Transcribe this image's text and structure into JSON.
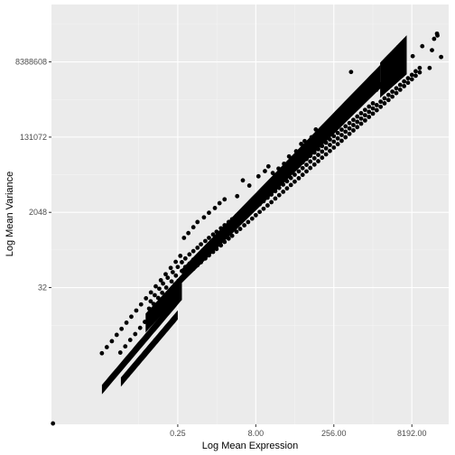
{
  "chart_data": {
    "type": "scatter",
    "title": "",
    "xlabel": "Log Mean Expression",
    "ylabel": "Log Mean Variance",
    "x_scale": "log2",
    "y_scale": "log2",
    "xlim": [
      0.000916,
      42000
    ],
    "ylim": [
      0.0167,
      200000000
    ],
    "xticks": [
      {
        "value": 0.25,
        "label": "0.25"
      },
      {
        "value": 8,
        "label": "8.00"
      },
      {
        "value": 256,
        "label": "256.00"
      },
      {
        "value": 8192,
        "label": "8192.00"
      }
    ],
    "yticks": [
      {
        "value": 32,
        "label": "32"
      },
      {
        "value": 2048,
        "label": "2048"
      },
      {
        "value": 131072,
        "label": "131072"
      },
      {
        "value": 8388608,
        "label": "8388608"
      }
    ],
    "grid": true,
    "legend": "none",
    "colors": {
      "panel_background": "#ebebeb",
      "grid_major": "#ffffff",
      "grid_minor": "#f5f5f5",
      "points": "#000000",
      "tick_label": "#4d4d4d",
      "axis_title": "#000000"
    },
    "series": [
      {
        "values_description": "",
        "points": [
          [
            0.00098,
            0.0175
          ],
          [
            0.0086,
            0.85
          ],
          [
            0.0107,
            1.19
          ],
          [
            0.0134,
            1.65
          ],
          [
            0.0166,
            2.34
          ],
          [
            0.0206,
            3.27
          ],
          [
            0.0256,
            4.6
          ],
          [
            0.0318,
            6.4
          ],
          [
            0.0396,
            9.0
          ],
          [
            0.049,
            12.6
          ],
          [
            0.061,
            17.7
          ],
          [
            0.076,
            24.5
          ],
          [
            0.094,
            34.3
          ],
          [
            0.118,
            48
          ],
          [
            0.146,
            67
          ],
          [
            0.183,
            95
          ],
          [
            0.228,
            133
          ],
          [
            0.28,
            185
          ],
          [
            0.0195,
            0.88
          ],
          [
            0.0243,
            1.24
          ],
          [
            0.0303,
            1.77
          ],
          [
            0.0378,
            2.45
          ],
          [
            0.047,
            3.45
          ],
          [
            0.058,
            4.8
          ],
          [
            0.073,
            6.8
          ],
          [
            0.091,
            9.6
          ],
          [
            0.114,
            13.5
          ],
          [
            0.142,
            19
          ],
          [
            0.177,
            27
          ],
          [
            0.22,
            38
          ],
          [
            0.075,
            15
          ],
          [
            0.09,
            21
          ],
          [
            0.11,
            30
          ],
          [
            0.13,
            40
          ],
          [
            0.16,
            55
          ],
          [
            0.2,
            75
          ],
          [
            0.25,
            100
          ],
          [
            0.07,
            10
          ],
          [
            0.085,
            13
          ],
          [
            0.105,
            18
          ],
          [
            0.125,
            24
          ],
          [
            0.15,
            32
          ],
          [
            0.19,
            45
          ],
          [
            0.23,
            62
          ],
          [
            0.1,
            11
          ],
          [
            0.12,
            14
          ],
          [
            0.14,
            18
          ],
          [
            0.17,
            25
          ],
          [
            0.21,
            34
          ],
          [
            0.26,
            47
          ],
          [
            0.3,
            52
          ],
          [
            0.3,
            80
          ],
          [
            0.3,
            130
          ],
          [
            0.35,
            60
          ],
          [
            0.35,
            100
          ],
          [
            0.35,
            160
          ],
          [
            0.42,
            75
          ],
          [
            0.42,
            120
          ],
          [
            0.42,
            200
          ],
          [
            0.5,
            90
          ],
          [
            0.5,
            150
          ],
          [
            0.5,
            240
          ],
          [
            0.6,
            110
          ],
          [
            0.6,
            180
          ],
          [
            0.6,
            290
          ],
          [
            0.7,
            130
          ],
          [
            0.7,
            210
          ],
          [
            0.7,
            350
          ],
          [
            0.85,
            160
          ],
          [
            0.85,
            260
          ],
          [
            0.85,
            420
          ],
          [
            1.0,
            190
          ],
          [
            1.0,
            310
          ],
          [
            1.0,
            500
          ],
          [
            1.2,
            230
          ],
          [
            1.2,
            380
          ],
          [
            1.2,
            600
          ],
          [
            1.4,
            270
          ],
          [
            1.4,
            450
          ],
          [
            1.4,
            700
          ],
          [
            1.7,
            330
          ],
          [
            1.7,
            550
          ],
          [
            1.7,
            850
          ],
          [
            2.0,
            400
          ],
          [
            2.0,
            650
          ],
          [
            2.0,
            1000
          ],
          [
            2.4,
            480
          ],
          [
            2.4,
            780
          ],
          [
            2.4,
            1200
          ],
          [
            2.8,
            560
          ],
          [
            2.8,
            900
          ],
          [
            2.8,
            1400
          ],
          [
            3.4,
            700
          ],
          [
            3.4,
            1100
          ],
          [
            3.4,
            1700
          ],
          [
            4.0,
            820
          ],
          [
            4.0,
            1300
          ],
          [
            4.0,
            2000
          ],
          [
            4.8,
            1000
          ],
          [
            4.8,
            1600
          ],
          [
            4.8,
            2400
          ],
          [
            5.7,
            1200
          ],
          [
            5.7,
            1900
          ],
          [
            5.7,
            2800
          ],
          [
            6.8,
            1450
          ],
          [
            6.8,
            2300
          ],
          [
            6.8,
            3400
          ],
          [
            8.0,
            1750
          ],
          [
            8.0,
            2700
          ],
          [
            8.0,
            4000
          ],
          [
            9.5,
            2100
          ],
          [
            9.5,
            3200
          ],
          [
            9.5,
            4700
          ],
          [
            11.3,
            2500
          ],
          [
            11.3,
            3800
          ],
          [
            11.3,
            5600
          ],
          [
            13.5,
            3000
          ],
          [
            13.5,
            4600
          ],
          [
            13.5,
            6700
          ],
          [
            16,
            3600
          ],
          [
            16,
            5500
          ],
          [
            16,
            8000
          ],
          [
            19,
            4400
          ],
          [
            19,
            6600
          ],
          [
            19,
            9500
          ],
          [
            22.6,
            5300
          ],
          [
            22.6,
            7900
          ],
          [
            22.6,
            11300
          ],
          [
            27,
            6400
          ],
          [
            27,
            9500
          ],
          [
            27,
            13500
          ],
          [
            32,
            7700
          ],
          [
            32,
            11400
          ],
          [
            32,
            16000
          ],
          [
            38,
            9300
          ],
          [
            38,
            13700
          ],
          [
            38,
            19000
          ],
          [
            45,
            11200
          ],
          [
            45,
            16400
          ],
          [
            45,
            22800
          ],
          [
            54,
            13500
          ],
          [
            54,
            19700
          ],
          [
            54,
            27000
          ],
          [
            64,
            16300
          ],
          [
            64,
            23600
          ],
          [
            64,
            32500
          ],
          [
            76,
            19700
          ],
          [
            76,
            28300
          ],
          [
            76,
            39000
          ],
          [
            90,
            23800
          ],
          [
            90,
            34000
          ],
          [
            90,
            46500
          ],
          [
            108,
            28700
          ],
          [
            108,
            40800
          ],
          [
            108,
            56000
          ],
          [
            128,
            34700
          ],
          [
            128,
            49000
          ],
          [
            128,
            67000
          ],
          [
            152,
            42000
          ],
          [
            152,
            59000
          ],
          [
            152,
            80000
          ],
          [
            181,
            50500
          ],
          [
            181,
            70500
          ],
          [
            181,
            96000
          ],
          [
            215,
            61000
          ],
          [
            215,
            85000
          ],
          [
            215,
            115000
          ],
          [
            256,
            73500
          ],
          [
            256,
            102000
          ],
          [
            256,
            138000
          ],
          [
            305,
            89000
          ],
          [
            305,
            122000
          ],
          [
            305,
            165000
          ],
          [
            362,
            107000
          ],
          [
            362,
            147000
          ],
          [
            362,
            198000
          ],
          [
            430,
            130000
          ],
          [
            430,
            177000
          ],
          [
            430,
            238000
          ],
          [
            512,
            157000
          ],
          [
            512,
            212000
          ],
          [
            512,
            285000
          ],
          [
            610,
            190000
          ],
          [
            610,
            255000
          ],
          [
            610,
            340000
          ],
          [
            725,
            228000
          ],
          [
            725,
            305000
          ],
          [
            725,
            410000
          ],
          [
            860,
            275000
          ],
          [
            860,
            365000
          ],
          [
            860,
            490000
          ],
          [
            1024,
            330000
          ],
          [
            1024,
            440000
          ],
          [
            1024,
            590000
          ],
          [
            1220,
            400000
          ],
          [
            1220,
            530000
          ],
          [
            1220,
            710000
          ],
          [
            1450,
            480000
          ],
          [
            1450,
            640000
          ],
          [
            1450,
            850000
          ],
          [
            1720,
            580000
          ],
          [
            1720,
            770000
          ],
          [
            2048,
            700000
          ],
          [
            2048,
            930000
          ],
          [
            2430,
            850000
          ],
          [
            2430,
            1120000
          ],
          [
            2900,
            1020000
          ],
          [
            2900,
            1350000
          ],
          [
            3440,
            1230000
          ],
          [
            3440,
            1620000
          ],
          [
            4100,
            1500000
          ],
          [
            4100,
            1950000
          ],
          [
            4870,
            1800000
          ],
          [
            4870,
            2350000
          ],
          [
            5800,
            2200000
          ],
          [
            5800,
            2850000
          ],
          [
            6900,
            2650000
          ],
          [
            6900,
            3400000
          ],
          [
            8192,
            3200000
          ],
          [
            8192,
            4100000
          ],
          [
            9700,
            3900000
          ],
          [
            9700,
            5000000
          ],
          [
            11600,
            4700000
          ],
          [
            11600,
            6000000
          ],
          [
            0.33,
            500
          ],
          [
            0.4,
            650
          ],
          [
            0.5,
            900
          ],
          [
            0.6,
            1200
          ],
          [
            0.8,
            1550
          ],
          [
            1.0,
            2000
          ],
          [
            1.3,
            2600
          ],
          [
            1.6,
            3400
          ],
          [
            2.0,
            4200
          ],
          [
            4.5,
            12000
          ],
          [
            6.0,
            9000
          ],
          [
            9.0,
            15000
          ],
          [
            3.5,
            5000
          ],
          [
            12,
            20000
          ],
          [
            14,
            26000
          ],
          [
            17,
            18000
          ],
          [
            22,
            23000
          ],
          [
            28,
            30000
          ],
          [
            35,
            45000
          ],
          [
            48,
            60000
          ],
          [
            60,
            90000
          ],
          [
            70,
            105000
          ],
          [
            95,
            130000
          ],
          [
            160,
            180000
          ],
          [
            115,
            200000
          ],
          [
            125,
            170000
          ],
          [
            300,
            400000
          ],
          [
            350,
            420000
          ],
          [
            330,
            390000
          ],
          [
            520,
            700000
          ],
          [
            560,
            810000
          ],
          [
            800,
            900000
          ],
          [
            950,
            1100000
          ],
          [
            1300,
            1350000
          ],
          [
            1200,
            1250000
          ],
          [
            1750,
            2000000
          ],
          [
            2050,
            2300000
          ],
          [
            2200,
            2200000
          ],
          [
            2600,
            2500000
          ],
          [
            3000,
            3300000
          ],
          [
            3300,
            3200000
          ],
          [
            3700,
            4200000
          ],
          [
            4200,
            4700000
          ],
          [
            5200,
            5500000
          ],
          [
            550,
            4800000
          ],
          [
            1700,
            1800000
          ],
          [
            1900,
            2100000
          ],
          [
            2100,
            2450000
          ],
          [
            2450,
            2700000
          ],
          [
            2700,
            3700000
          ],
          [
            3100,
            3000000
          ],
          [
            3500,
            3800000
          ],
          [
            3900,
            4000000
          ],
          [
            4600,
            5000000
          ],
          [
            4000,
            7000000
          ],
          [
            25000,
            40000000
          ],
          [
            25500,
            36000000
          ],
          [
            22000,
            30000000
          ],
          [
            13000,
            20000000
          ],
          [
            20000,
            16000000
          ],
          [
            30000,
            11000000
          ],
          [
            18000,
            6000000
          ],
          [
            8500,
            11500000
          ]
        ]
      }
    ]
  }
}
